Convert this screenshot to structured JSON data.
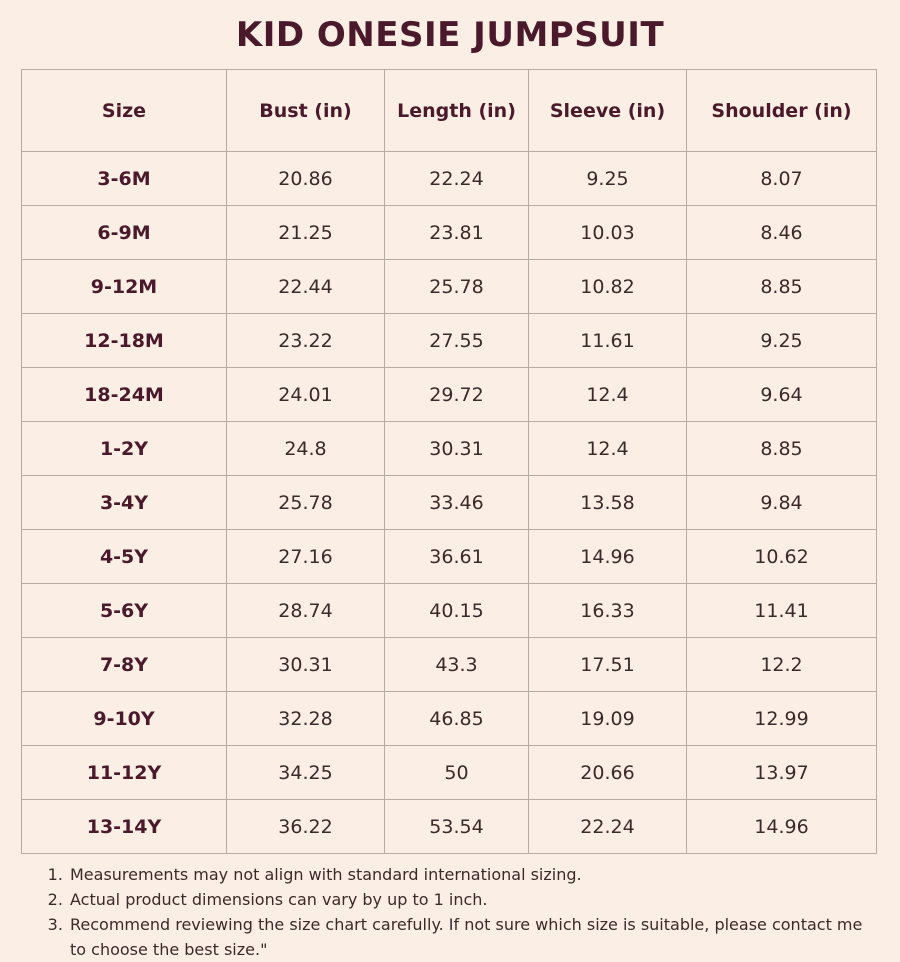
{
  "title": "KID ONESIE JUMPSUIT",
  "table": {
    "headers": [
      "Size",
      "Bust (in)",
      "Length (in)",
      "Sleeve (in)",
      "Shoulder (in)"
    ],
    "rows": [
      [
        "3-6M",
        "20.86",
        "22.24",
        "9.25",
        "8.07"
      ],
      [
        "6-9M",
        "21.25",
        "23.81",
        "10.03",
        "8.46"
      ],
      [
        "9-12M",
        "22.44",
        "25.78",
        "10.82",
        "8.85"
      ],
      [
        "12-18M",
        "23.22",
        "27.55",
        "11.61",
        "9.25"
      ],
      [
        "18-24M",
        "24.01",
        "29.72",
        "12.4",
        "9.64"
      ],
      [
        "1-2Y",
        "24.8",
        "30.31",
        "12.4",
        "8.85"
      ],
      [
        "3-4Y",
        "25.78",
        "33.46",
        "13.58",
        "9.84"
      ],
      [
        "4-5Y",
        "27.16",
        "36.61",
        "14.96",
        "10.62"
      ],
      [
        "5-6Y",
        "28.74",
        "40.15",
        "16.33",
        "11.41"
      ],
      [
        "7-8Y",
        "30.31",
        "43.3",
        "17.51",
        "12.2"
      ],
      [
        "9-10Y",
        "32.28",
        "46.85",
        "19.09",
        "12.99"
      ],
      [
        "11-12Y",
        "34.25",
        "50",
        "20.66",
        "13.97"
      ],
      [
        "13-14Y",
        "36.22",
        "53.54",
        "22.24",
        "14.96"
      ]
    ]
  },
  "notes": [
    "Measurements may not align with standard international sizing.",
    "Actual product dimensions can vary by up to 1 inch.",
    "Recommend reviewing the size chart carefully. If not sure which size is suitable, please contact me to choose the best size.\""
  ],
  "colors": {
    "background": "#fbeee4",
    "accent": "#4a1a2c",
    "border": "#b8aaa4",
    "text": "#3a2a2a"
  }
}
